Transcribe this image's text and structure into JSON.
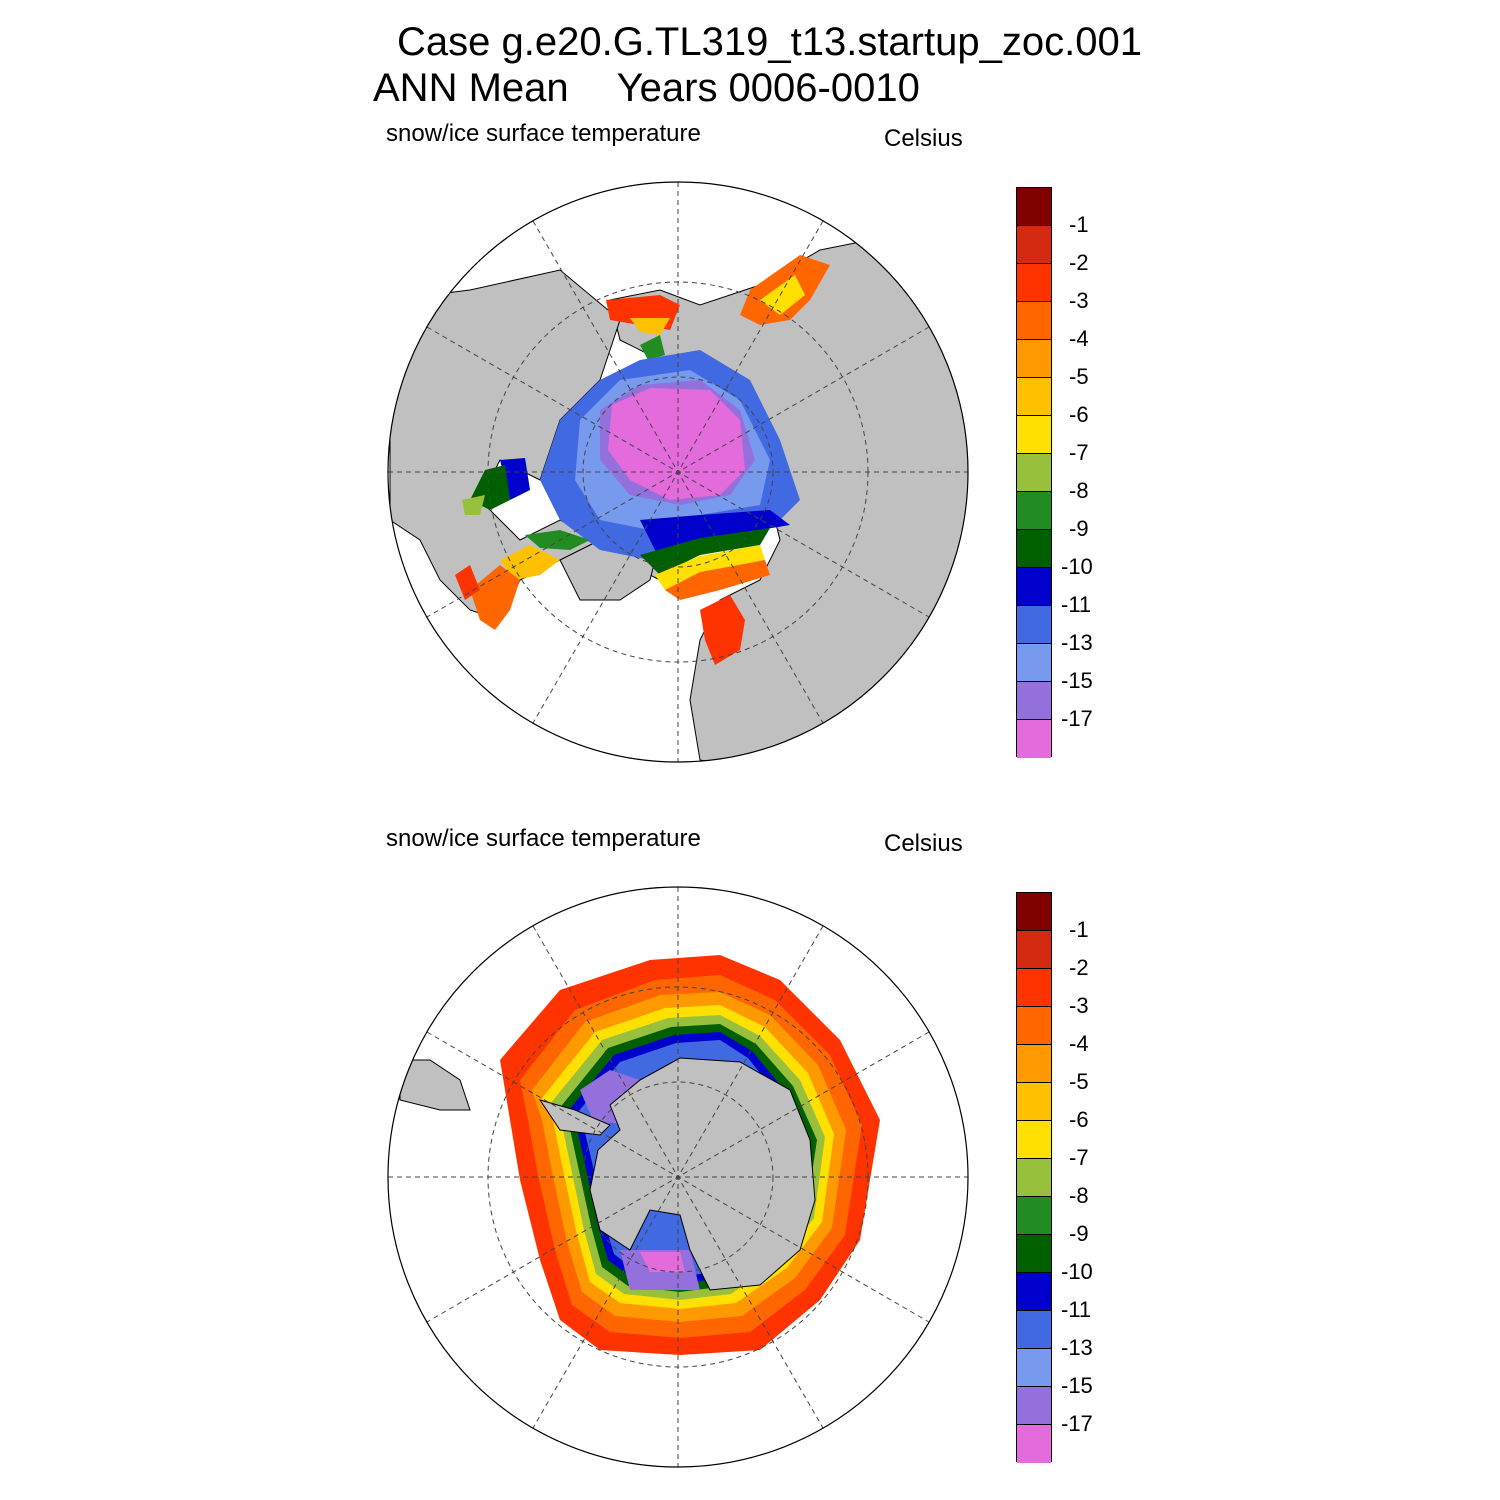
{
  "title": {
    "line1": "Case g.e20.G.TL319_t13.startup_zoc.001",
    "line2_left": "ANN Mean",
    "line2_right": "Years 0006-0010"
  },
  "panels": [
    {
      "id": "north",
      "variable": "snow/ice surface temperature",
      "units": "Celsius",
      "hemisphere": "Northern Hemisphere (polar stereographic)"
    },
    {
      "id": "south",
      "variable": "snow/ice surface temperature",
      "units": "Celsius",
      "hemisphere": "Southern Hemisphere (polar stereographic)"
    }
  ],
  "colorbar": {
    "colors": [
      "#800000",
      "#d42a12",
      "#ff3300",
      "#ff6600",
      "#ff9900",
      "#ffc000",
      "#ffe000",
      "#99c03c",
      "#228b22",
      "#006000",
      "#0000cc",
      "#4169e1",
      "#7799ee",
      "#9370db",
      "#e46bdc"
    ],
    "labels": [
      "-1",
      "-2",
      "-3",
      "-4",
      "-5",
      "-6",
      "-7",
      "-8",
      "-9",
      "-10",
      "-11",
      "-13",
      "-15",
      "-17"
    ]
  },
  "colors": {
    "land": "#c0c0c0",
    "ocean": "#ffffff",
    "grid": "#444444"
  }
}
